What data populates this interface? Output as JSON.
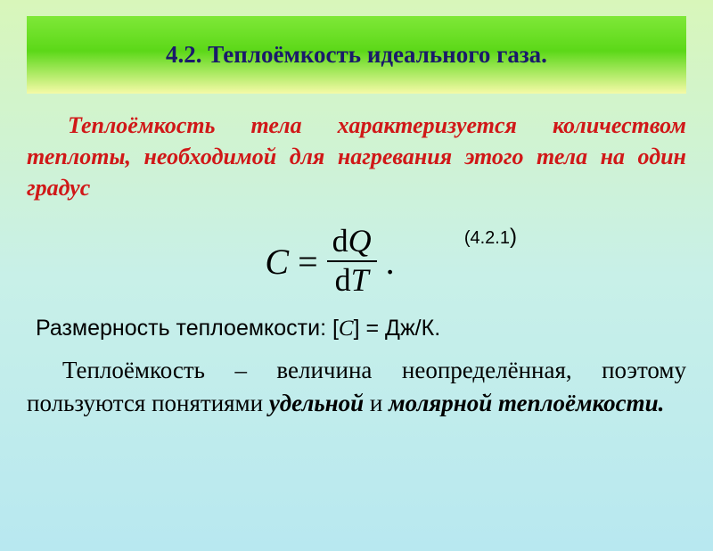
{
  "colors": {
    "background_gradient": [
      "#d8f6ba",
      "#c8f0e8",
      "#b8e8f0"
    ],
    "header_gradient": [
      "#7fe838",
      "#5cd818",
      "#f5faa8"
    ],
    "title_text": "#1a1a6a",
    "definition_text": "#d01818",
    "body_text": "#000000"
  },
  "header": {
    "title": "4.2. Теплоёмкость идеального газа."
  },
  "definition": {
    "text": "Теплоёмкость тела характеризуется количеством теплоты, необходимой для нагревания этого тела на один градус"
  },
  "formula": {
    "lhs": "C",
    "eq": "=",
    "numerator_d": "d",
    "numerator_var": "Q",
    "denominator_d": "d",
    "denominator_var": "T",
    "period": ".",
    "number_prefix": "(4.2.1",
    "number_suffix": ")",
    "type": "fraction-equation"
  },
  "dimension": {
    "prefix": "Размерность теплоемкости: [",
    "symbol": "C",
    "suffix": "] = Дж/К."
  },
  "paragraph": {
    "part1": "Теплоёмкость – величина неопределённая, поэтому пользуются понятиями ",
    "bold1": "удельной",
    "part2": " и ",
    "bold2": "молярной теплоёмкости."
  },
  "typography": {
    "title_fontsize_pt": 20,
    "definition_fontsize_pt": 20,
    "formula_fontsize_pt": 30,
    "body_fontsize_pt": 20,
    "font_family_serif": "Times New Roman",
    "font_family_sans": "Arial"
  }
}
